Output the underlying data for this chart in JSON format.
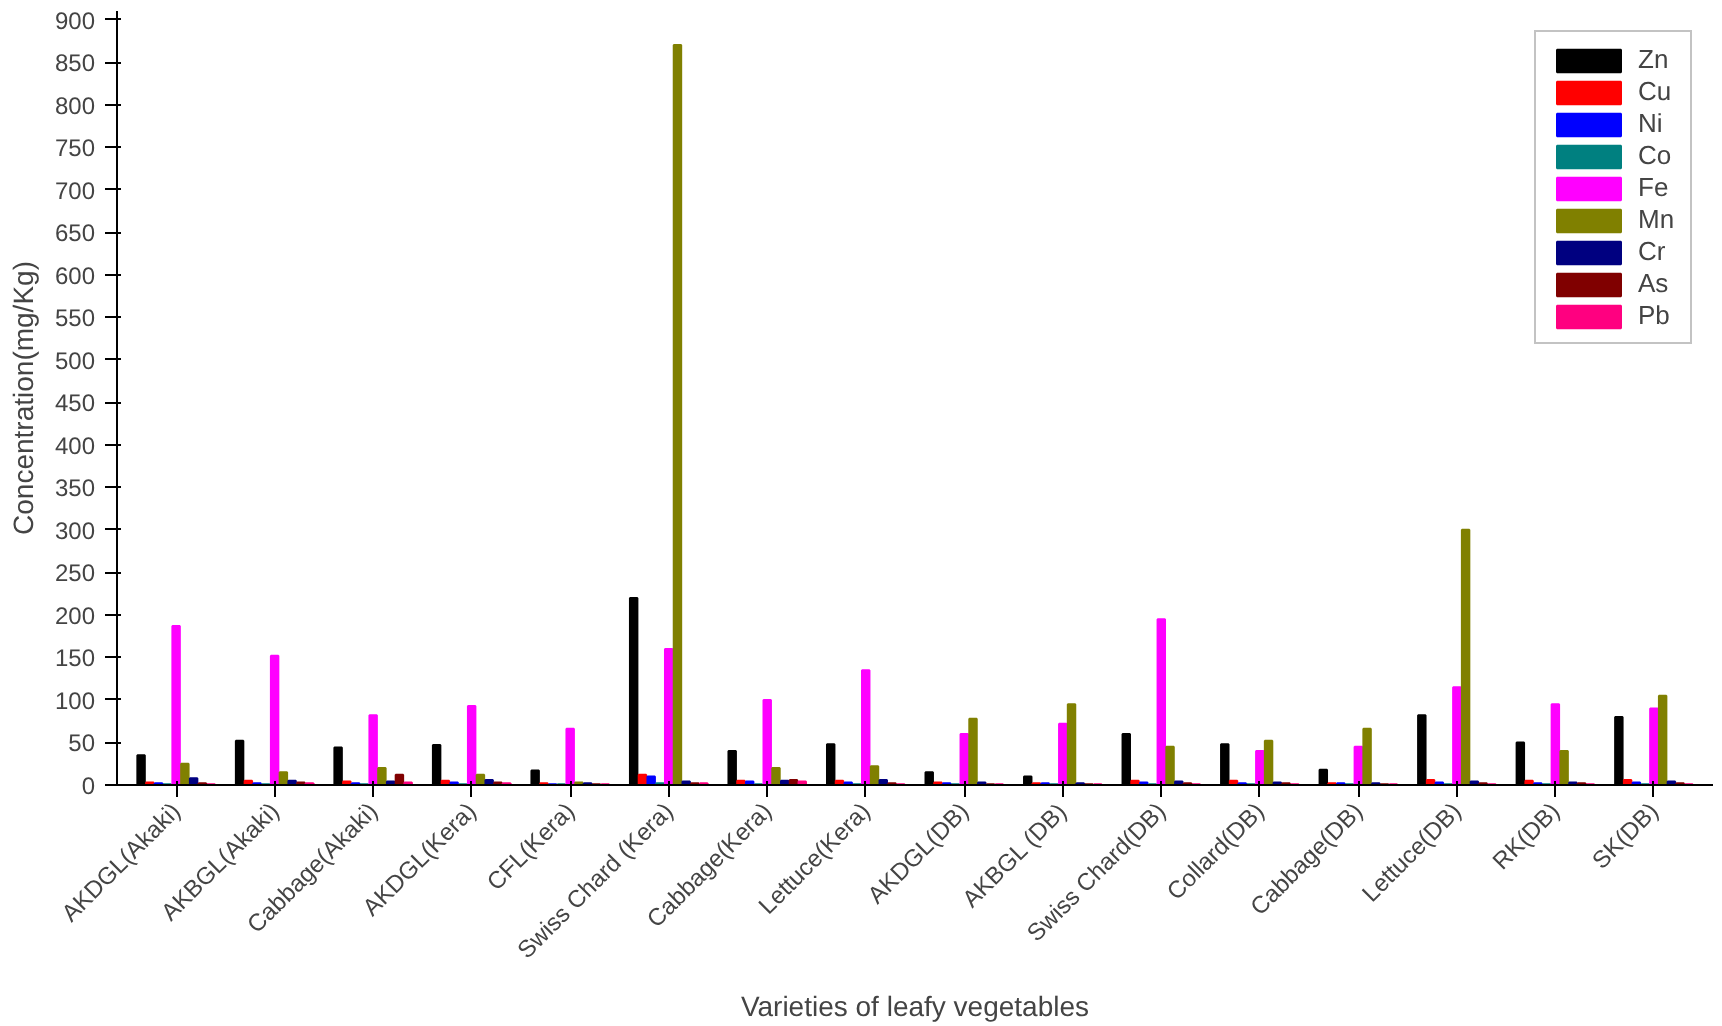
{
  "chart_data": {
    "type": "bar",
    "xlabel": "Varieties of leafy vegetables",
    "ylabel": "Concentration(mg/Kg)",
    "categories": [
      "AKDGL(Akaki)",
      "AKBGL(Akaki)",
      "Cabbage(Akaki)",
      "AKDGL(Kera)",
      "CFL(Kera)",
      "Swiss Chard (Kera)",
      "Cabbage(Kera)",
      "Lettuce(Kera)",
      "AKDGL(DB)",
      "AKBGL (DB)",
      "Swiss Chard(DB)",
      "Collard(DB)",
      "Cabbage(DB)",
      "Lettuce(DB)",
      "RK(DB)",
      "SK(DB)"
    ],
    "series": [
      {
        "name": "Zn",
        "color": "#000000",
        "values": [
          35,
          52,
          44,
          47,
          17,
          220,
          40,
          48,
          15,
          10,
          60,
          48,
          18,
          82,
          50,
          80
        ]
      },
      {
        "name": "Cu",
        "color": "#ff0000",
        "values": [
          3,
          5,
          4,
          5,
          2,
          12,
          5,
          5,
          3,
          2,
          5,
          5,
          2,
          6,
          5,
          6
        ]
      },
      {
        "name": "Ni",
        "color": "#0000ff",
        "values": [
          2,
          2,
          2,
          3,
          1,
          10,
          4,
          3,
          2,
          2,
          3,
          2,
          2,
          3,
          2,
          3
        ]
      },
      {
        "name": "Co",
        "color": "#008080",
        "values": [
          1,
          1,
          1,
          1,
          1,
          2,
          1,
          1,
          1,
          1,
          1,
          1,
          1,
          1,
          1,
          1
        ]
      },
      {
        "name": "Fe",
        "color": "#ff00ff",
        "values": [
          187,
          152,
          82,
          93,
          66,
          160,
          100,
          135,
          60,
          72,
          195,
          40,
          45,
          115,
          95,
          90
        ]
      },
      {
        "name": "Mn",
        "color": "#808000",
        "values": [
          25,
          15,
          20,
          12,
          3,
          870,
          20,
          22,
          78,
          95,
          45,
          52,
          66,
          300,
          40,
          105
        ]
      },
      {
        "name": "Cr",
        "color": "#000080",
        "values": [
          8,
          5,
          4,
          6,
          2,
          4,
          5,
          6,
          3,
          2,
          4,
          3,
          2,
          4,
          3,
          4
        ]
      },
      {
        "name": "As",
        "color": "#800000",
        "values": [
          2,
          3,
          12,
          3,
          1,
          2,
          6,
          2,
          1,
          1,
          2,
          2,
          1,
          2,
          2,
          2
        ]
      },
      {
        "name": "Pb",
        "color": "#ff0080",
        "values": [
          1,
          2,
          3,
          2,
          1,
          2,
          4,
          1,
          1,
          1,
          1,
          1,
          1,
          1,
          1,
          1
        ]
      }
    ],
    "ylim": [
      0,
      910
    ],
    "yticks": [
      0,
      50,
      100,
      150,
      200,
      250,
      300,
      350,
      400,
      450,
      500,
      550,
      600,
      650,
      700,
      750,
      800,
      850,
      900
    ],
    "grid": false,
    "legend": "top right"
  }
}
